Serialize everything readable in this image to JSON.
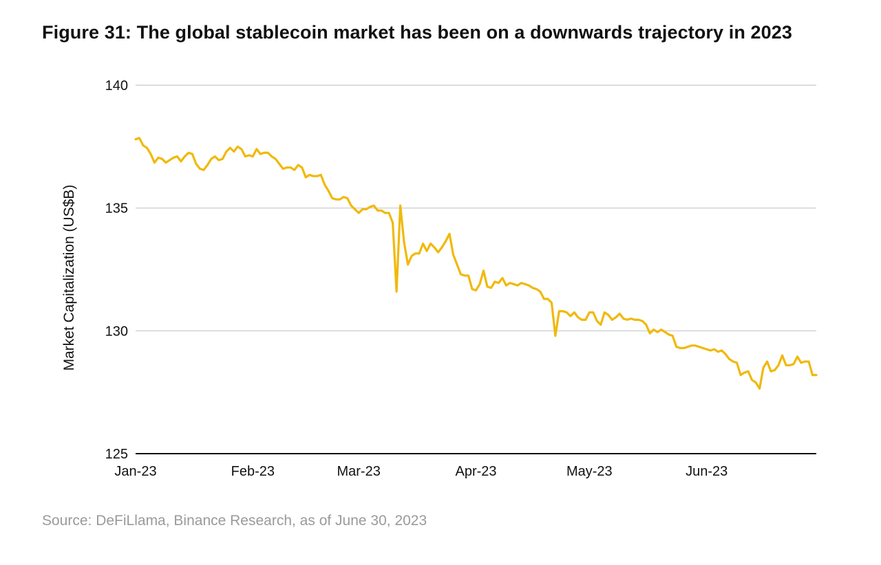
{
  "figure": {
    "title": "Figure 31: The global stablecoin market has been on a downwards trajectory in 2023",
    "source": "Source: DeFiLlama, Binance Research, as of June 30, 2023"
  },
  "chart_data": {
    "type": "line",
    "title": "Figure 31: The global stablecoin market has been on a downwards trajectory in 2023",
    "xlabel": "",
    "ylabel": "Market Capitalization (US$B)",
    "ylim": [
      125,
      140
    ],
    "yticks": [
      125,
      130,
      135,
      140
    ],
    "xlim": [
      "2023-01-01",
      "2023-06-30"
    ],
    "xticks": [
      {
        "date": "2023-01-01",
        "label": "Jan-23"
      },
      {
        "date": "2023-02-01",
        "label": "Feb-23"
      },
      {
        "date": "2023-03-01",
        "label": "Mar-23"
      },
      {
        "date": "2023-04-01",
        "label": "Apr-23"
      },
      {
        "date": "2023-05-01",
        "label": "May-23"
      },
      {
        "date": "2023-06-01",
        "label": "Jun-23"
      }
    ],
    "grid": true,
    "line_color": "#F0B90B",
    "series": [
      {
        "name": "",
        "x": [
          "2023-01-01",
          "2023-01-02",
          "2023-01-03",
          "2023-01-04",
          "2023-01-05",
          "2023-01-06",
          "2023-01-07",
          "2023-01-08",
          "2023-01-09",
          "2023-01-10",
          "2023-01-11",
          "2023-01-12",
          "2023-01-13",
          "2023-01-14",
          "2023-01-15",
          "2023-01-16",
          "2023-01-17",
          "2023-01-18",
          "2023-01-19",
          "2023-01-20",
          "2023-01-21",
          "2023-01-22",
          "2023-01-23",
          "2023-01-24",
          "2023-01-25",
          "2023-01-26",
          "2023-01-27",
          "2023-01-28",
          "2023-01-29",
          "2023-01-30",
          "2023-01-31",
          "2023-02-01",
          "2023-02-02",
          "2023-02-03",
          "2023-02-04",
          "2023-02-05",
          "2023-02-06",
          "2023-02-07",
          "2023-02-08",
          "2023-02-09",
          "2023-02-10",
          "2023-02-11",
          "2023-02-12",
          "2023-02-13",
          "2023-02-14",
          "2023-02-15",
          "2023-02-16",
          "2023-02-17",
          "2023-02-18",
          "2023-02-19",
          "2023-02-20",
          "2023-02-21",
          "2023-02-22",
          "2023-02-23",
          "2023-02-24",
          "2023-02-25",
          "2023-02-26",
          "2023-02-27",
          "2023-02-28",
          "2023-03-01",
          "2023-03-02",
          "2023-03-03",
          "2023-03-04",
          "2023-03-05",
          "2023-03-06",
          "2023-03-07",
          "2023-03-08",
          "2023-03-09",
          "2023-03-10",
          "2023-03-11",
          "2023-03-12",
          "2023-03-13",
          "2023-03-14",
          "2023-03-15",
          "2023-03-16",
          "2023-03-17",
          "2023-03-18",
          "2023-03-19",
          "2023-03-20",
          "2023-03-21",
          "2023-03-22",
          "2023-03-23",
          "2023-03-24",
          "2023-03-25",
          "2023-03-26",
          "2023-03-27",
          "2023-03-28",
          "2023-03-29",
          "2023-03-30",
          "2023-03-31",
          "2023-04-01",
          "2023-04-02",
          "2023-04-03",
          "2023-04-04",
          "2023-04-05",
          "2023-04-06",
          "2023-04-07",
          "2023-04-08",
          "2023-04-09",
          "2023-04-10",
          "2023-04-11",
          "2023-04-12",
          "2023-04-13",
          "2023-04-14",
          "2023-04-15",
          "2023-04-16",
          "2023-04-17",
          "2023-04-18",
          "2023-04-19",
          "2023-04-20",
          "2023-04-21",
          "2023-04-22",
          "2023-04-23",
          "2023-04-24",
          "2023-04-25",
          "2023-04-26",
          "2023-04-27",
          "2023-04-28",
          "2023-04-29",
          "2023-04-30",
          "2023-05-01",
          "2023-05-02",
          "2023-05-03",
          "2023-05-04",
          "2023-05-05",
          "2023-05-06",
          "2023-05-07",
          "2023-05-08",
          "2023-05-09",
          "2023-05-10",
          "2023-05-11",
          "2023-05-12",
          "2023-05-13",
          "2023-05-14",
          "2023-05-15",
          "2023-05-16",
          "2023-05-17",
          "2023-05-18",
          "2023-05-19",
          "2023-05-20",
          "2023-05-21",
          "2023-05-22",
          "2023-05-23",
          "2023-05-24",
          "2023-05-25",
          "2023-05-26",
          "2023-05-27",
          "2023-05-28",
          "2023-05-29",
          "2023-05-30",
          "2023-05-31",
          "2023-06-01",
          "2023-06-02",
          "2023-06-03",
          "2023-06-04",
          "2023-06-05",
          "2023-06-06",
          "2023-06-07",
          "2023-06-08",
          "2023-06-09",
          "2023-06-10",
          "2023-06-11",
          "2023-06-12",
          "2023-06-13",
          "2023-06-14",
          "2023-06-15",
          "2023-06-16",
          "2023-06-17",
          "2023-06-18",
          "2023-06-19",
          "2023-06-20",
          "2023-06-21",
          "2023-06-22",
          "2023-06-23",
          "2023-06-24",
          "2023-06-25",
          "2023-06-26",
          "2023-06-27",
          "2023-06-28",
          "2023-06-29",
          "2023-06-30"
        ],
        "values": [
          137.8,
          137.85,
          137.55,
          137.45,
          137.2,
          136.85,
          137.05,
          137.0,
          136.85,
          136.95,
          137.05,
          137.1,
          136.9,
          137.1,
          137.25,
          137.2,
          136.8,
          136.6,
          136.55,
          136.75,
          137.0,
          137.1,
          136.95,
          137.0,
          137.3,
          137.45,
          137.3,
          137.5,
          137.4,
          137.1,
          137.15,
          137.1,
          137.4,
          137.2,
          137.25,
          137.25,
          137.1,
          137.0,
          136.8,
          136.6,
          136.65,
          136.65,
          136.55,
          136.75,
          136.65,
          136.25,
          136.35,
          136.3,
          136.3,
          136.35,
          135.95,
          135.7,
          135.4,
          135.35,
          135.35,
          135.45,
          135.4,
          135.1,
          134.95,
          134.8,
          134.95,
          134.95,
          135.05,
          135.1,
          134.9,
          134.9,
          134.8,
          134.8,
          134.4,
          131.6,
          135.1,
          133.6,
          132.7,
          133.05,
          133.15,
          133.15,
          133.55,
          133.25,
          133.55,
          133.4,
          133.2,
          133.4,
          133.65,
          133.95,
          133.1,
          132.7,
          132.3,
          132.25,
          132.25,
          131.7,
          131.65,
          131.9,
          132.45,
          131.8,
          131.75,
          132.0,
          131.95,
          132.15,
          131.85,
          131.95,
          131.9,
          131.85,
          131.95,
          131.9,
          131.85,
          131.75,
          131.7,
          131.6,
          131.3,
          131.3,
          131.15,
          129.8,
          130.8,
          130.8,
          130.75,
          130.6,
          130.75,
          130.55,
          130.45,
          130.45,
          130.75,
          130.75,
          130.4,
          130.25,
          130.75,
          130.65,
          130.45,
          130.55,
          130.7,
          130.5,
          130.45,
          130.5,
          130.45,
          130.45,
          130.4,
          130.25,
          129.9,
          130.05,
          129.95,
          130.05,
          129.95,
          129.85,
          129.8,
          129.35,
          129.3,
          129.3,
          129.35,
          129.4,
          129.4,
          129.35,
          129.3,
          129.25,
          129.2,
          129.25,
          129.15,
          129.2,
          129.05,
          128.85,
          128.75,
          128.7,
          128.2,
          128.3,
          128.35,
          128.0,
          127.9,
          127.65,
          128.5,
          128.75,
          128.35,
          128.4,
          128.6,
          129.0,
          128.6,
          128.6,
          128.65,
          128.95,
          128.7,
          128.75,
          128.75,
          128.2,
          128.2
        ]
      }
    ]
  }
}
